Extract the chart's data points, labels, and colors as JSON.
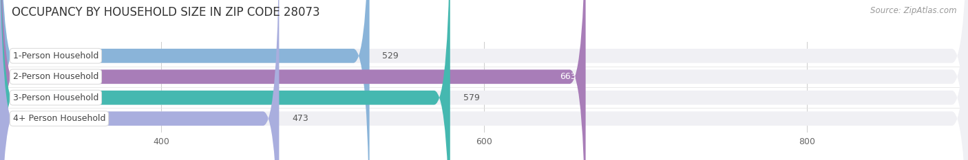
{
  "title": "OCCUPANCY BY HOUSEHOLD SIZE IN ZIP CODE 28073",
  "source": "Source: ZipAtlas.com",
  "categories": [
    "1-Person Household",
    "2-Person Household",
    "3-Person Household",
    "4+ Person Household"
  ],
  "values": [
    529,
    663,
    579,
    473
  ],
  "bar_colors": [
    "#8ab4d9",
    "#a87db8",
    "#45b8b0",
    "#a9aede"
  ],
  "xlim_left": 300,
  "xlim_right": 900,
  "xticks": [
    400,
    600,
    800
  ],
  "background_color": "#ffffff",
  "row_bg_color": "#f0f0f4",
  "title_fontsize": 12,
  "source_fontsize": 8.5,
  "label_fontsize": 9,
  "value_fontsize": 9
}
